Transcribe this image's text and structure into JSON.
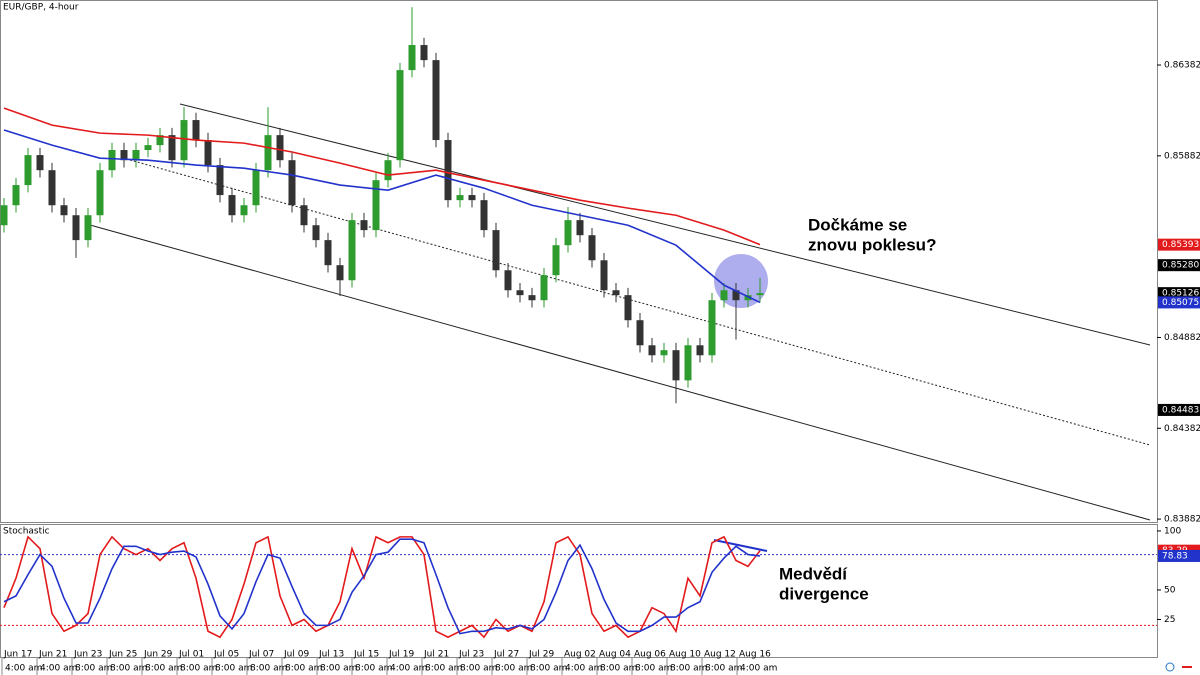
{
  "chart_data": [
    {
      "type": "candlestick",
      "title": "EUR/GBP, 4-hour",
      "ylim": [
        0.83866,
        0.8674
      ],
      "yticks": [
        0.83882,
        0.84382,
        0.84882,
        0.85882,
        0.86382
      ],
      "up_color": "#2e9b2e",
      "down_color": "#333333",
      "open": [
        0.855,
        0.8561,
        0.85721,
        0.85886,
        0.85803,
        0.8561,
        0.85555,
        0.85418,
        0.85555,
        0.85803,
        0.85914,
        0.85858,
        0.85914,
        0.85941,
        0.85996,
        0.85858,
        0.86079,
        0.85969,
        0.85831,
        0.85666,
        0.85555,
        0.8561,
        0.85803,
        0.85996,
        0.85858,
        0.8561,
        0.855,
        0.85418,
        0.8528,
        0.85197,
        0.85528,
        0.85473,
        0.85748,
        0.85858,
        0.86354,
        0.86492,
        0.86409,
        0.85969,
        0.85638,
        0.85666,
        0.85638,
        0.85473,
        0.85252,
        0.85142,
        0.85115,
        0.85087,
        0.85225,
        0.8539,
        0.85528,
        0.85445,
        0.85307,
        0.85142,
        0.85115,
        0.84977,
        0.84839,
        0.84784,
        0.84812,
        0.84646,
        0.84839,
        0.84784,
        0.85087,
        0.85142,
        0.85087,
        0.85115
      ],
      "high": [
        0.8565,
        0.85761,
        0.85926,
        0.85926,
        0.85843,
        0.8565,
        0.85595,
        0.85595,
        0.85843,
        0.85954,
        0.85954,
        0.85954,
        0.85981,
        0.86036,
        0.86036,
        0.8615,
        0.86119,
        0.86009,
        0.85871,
        0.85706,
        0.8565,
        0.85843,
        0.8615,
        0.86036,
        0.85898,
        0.8565,
        0.8554,
        0.85458,
        0.8532,
        0.85568,
        0.85568,
        0.85788,
        0.85898,
        0.86394,
        0.867,
        0.86532,
        0.86449,
        0.86009,
        0.85706,
        0.85706,
        0.85678,
        0.85513,
        0.85292,
        0.85182,
        0.85155,
        0.85265,
        0.8543,
        0.856,
        0.85568,
        0.85485,
        0.85347,
        0.85182,
        0.85155,
        0.85017,
        0.84879,
        0.84852,
        0.84852,
        0.84879,
        0.84879,
        0.85127,
        0.85182,
        0.85182,
        0.85155,
        0.8521
      ],
      "low": [
        0.8546,
        0.8557,
        0.85681,
        0.85763,
        0.8557,
        0.85515,
        0.8532,
        0.85378,
        0.85515,
        0.85763,
        0.85818,
        0.85818,
        0.85874,
        0.85901,
        0.85818,
        0.85818,
        0.85929,
        0.85791,
        0.85626,
        0.85515,
        0.85515,
        0.8557,
        0.85763,
        0.85818,
        0.8557,
        0.8546,
        0.85378,
        0.8524,
        0.8511,
        0.85157,
        0.85433,
        0.85433,
        0.85708,
        0.85818,
        0.86314,
        0.86369,
        0.85929,
        0.85598,
        0.85598,
        0.85598,
        0.85433,
        0.85212,
        0.85102,
        0.85075,
        0.85047,
        0.85047,
        0.85185,
        0.8535,
        0.85405,
        0.85267,
        0.85102,
        0.85075,
        0.84937,
        0.84799,
        0.84744,
        0.84744,
        0.8452,
        0.84606,
        0.84744,
        0.84744,
        0.85047,
        0.8487,
        0.85047,
        0.85075
      ],
      "close": [
        0.8561,
        0.85721,
        0.85886,
        0.85803,
        0.8561,
        0.85555,
        0.85418,
        0.85555,
        0.85803,
        0.85914,
        0.85858,
        0.85914,
        0.85941,
        0.85996,
        0.85858,
        0.86079,
        0.85969,
        0.85831,
        0.85666,
        0.85555,
        0.8561,
        0.85803,
        0.85996,
        0.85858,
        0.8561,
        0.855,
        0.85418,
        0.8528,
        0.85197,
        0.85528,
        0.85473,
        0.85748,
        0.85858,
        0.86354,
        0.86492,
        0.86409,
        0.85969,
        0.85638,
        0.85666,
        0.85638,
        0.85473,
        0.85252,
        0.85142,
        0.85115,
        0.85087,
        0.85225,
        0.8539,
        0.85528,
        0.85445,
        0.85307,
        0.85142,
        0.85115,
        0.84977,
        0.84839,
        0.84784,
        0.84812,
        0.84646,
        0.84839,
        0.84784,
        0.85087,
        0.85142,
        0.85087,
        0.85115,
        0.85126
      ],
      "series": [
        {
          "color": "#e31a1c",
          "x": [
            0,
            4,
            8,
            12,
            16,
            20,
            24,
            28,
            32,
            36,
            40,
            44,
            48,
            52,
            56,
            60,
            63
          ],
          "values": [
            0.86145,
            0.86051,
            0.86007,
            0.85996,
            0.85969,
            0.85952,
            0.85903,
            0.85842,
            0.85776,
            0.85803,
            0.85748,
            0.85693,
            0.85638,
            0.85594,
            0.85555,
            0.85473,
            0.85393
          ]
        },
        {
          "color": "#2233cc",
          "x": [
            0,
            4,
            8,
            12,
            16,
            20,
            24,
            28,
            32,
            36,
            40,
            44,
            48,
            52,
            56,
            60,
            63
          ],
          "values": [
            0.86024,
            0.85941,
            0.85869,
            0.85858,
            0.85831,
            0.85814,
            0.85776,
            0.85721,
            0.85693,
            0.85776,
            0.85704,
            0.8561,
            0.85555,
            0.855,
            0.8539,
            0.8517,
            0.85075
          ]
        }
      ],
      "price_tags": [
        {
          "value": 0.85393,
          "color": "#e31a1c"
        },
        {
          "value": 0.8528,
          "label": "0.85280",
          "color": "#000000"
        },
        {
          "value": 0.85126,
          "color": "#000000"
        },
        {
          "value": 0.85075,
          "color": "#2233cc"
        },
        {
          "value": 0.84483,
          "color": "#000000"
        }
      ],
      "annotation": [
        "Dočkáme se",
        "znovu poklesu?"
      ]
    },
    {
      "type": "line",
      "title": "Stochastic",
      "ylim": [
        -6.8,
        105.9
      ],
      "yticks": [
        25,
        50,
        100
      ],
      "levels": [
        {
          "value": 80,
          "color": "#3333cc"
        },
        {
          "value": 20,
          "color": "#e31a1c"
        }
      ],
      "series": [
        {
          "color": "#e31a1c",
          "values": [
            35,
            60,
            95,
            85,
            30,
            15,
            20,
            30,
            80,
            95,
            85,
            80,
            85,
            75,
            85,
            90,
            60,
            15,
            10,
            25,
            55,
            90,
            95,
            45,
            20,
            25,
            15,
            20,
            40,
            85,
            60,
            95,
            90,
            95,
            95,
            80,
            15,
            10,
            15,
            20,
            10,
            25,
            15,
            20,
            15,
            40,
            90,
            95,
            80,
            30,
            15,
            20,
            10,
            15,
            35,
            30,
            15,
            60,
            45,
            90,
            95,
            75,
            70,
            83.29
          ]
        },
        {
          "color": "#2233cc",
          "values": [
            40,
            45,
            63,
            80,
            70,
            43,
            22,
            22,
            43,
            68,
            87,
            87,
            83,
            80,
            82,
            83,
            78,
            55,
            28,
            17,
            30,
            57,
            80,
            77,
            53,
            30,
            20,
            20,
            25,
            48,
            62,
            80,
            82,
            93,
            93,
            90,
            63,
            35,
            13,
            15,
            15,
            18,
            17,
            20,
            17,
            25,
            48,
            75,
            88,
            68,
            42,
            22,
            15,
            15,
            20,
            27,
            27,
            35,
            40,
            65,
            77,
            87,
            80,
            78.83
          ]
        }
      ],
      "value_tags": [
        {
          "value": 83.29,
          "color": "#e31a1c"
        },
        {
          "value": 78.83,
          "color": "#2233cc"
        }
      ],
      "x_labels": {
        "dates": [
          "Jun 17",
          "Jun 21",
          "Jun 23",
          "Jun 25",
          "Jun 29",
          "Jul 01",
          "Jul 05",
          "Jul 07",
          "Jul 09",
          "Jul 13",
          "Jul 15",
          "Jul 19",
          "Jul 21",
          "Jul 23",
          "Jul 27",
          "Jul 29",
          "Aug 02",
          "Aug 04",
          "Aug 06",
          "Aug 10",
          "Aug 12",
          "Aug 16"
        ],
        "times": [
          "4:00 am",
          "4:00 am",
          "8:00 am",
          "8:00 am",
          "8:00 am",
          "8:00 am",
          "8:00 am",
          "8:00 am",
          "8:00 am",
          "8:00 am",
          "8:00 am",
          "4:00 am",
          "8:00 am",
          "8:00 am",
          "8:00 am",
          "8:00 am",
          "4:00 am",
          "8:00 am",
          "8:00 am",
          "8:00 am",
          "8:00 am",
          "4:00 am"
        ]
      },
      "annotation": [
        "Medvědí",
        "divergence"
      ]
    }
  ]
}
